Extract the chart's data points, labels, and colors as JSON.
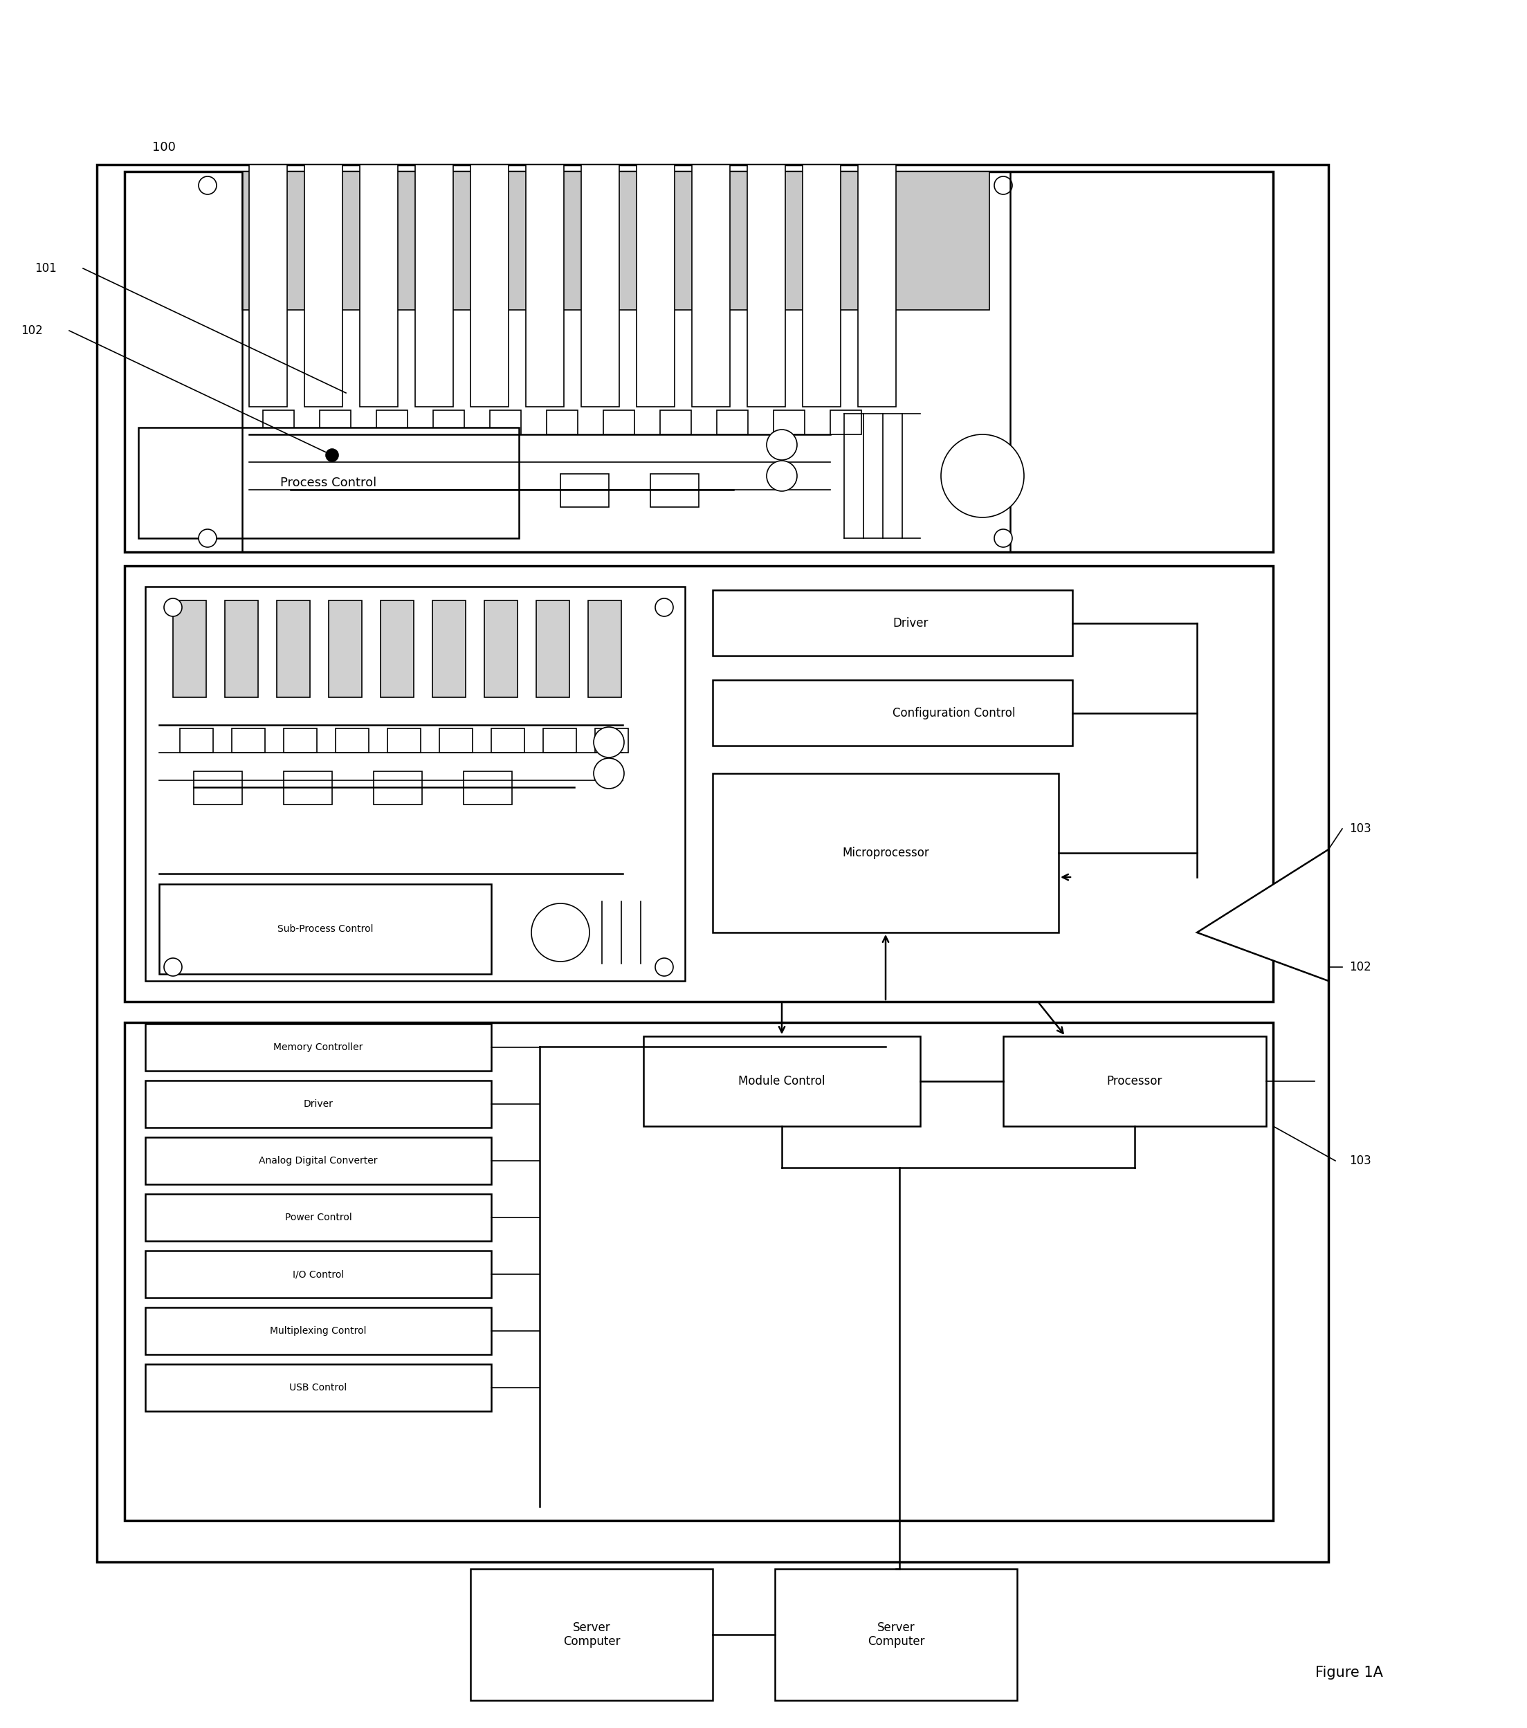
{
  "bg": "#ffffff",
  "lc": "#000000",
  "fw": 22.07,
  "fh": 24.98,
  "labels": {
    "n100": "100",
    "n101": "101",
    "n102": "102",
    "n103": "103",
    "fig": "Figure 1A",
    "proc_ctrl": "Process Control",
    "sub_proc": "Sub-Process Control",
    "driver": "Driver",
    "cfg_ctrl": "Configuration Control",
    "microproc": "Microprocessor",
    "mem_ctrl": "Memory Controller",
    "drv_bot": "Driver",
    "adc": "Analog Digital Converter",
    "pwr_ctrl": "Power Control",
    "io_ctrl": "I/O Control",
    "mux_ctrl": "Multiplexing Control",
    "usb_ctrl": "USB Control",
    "mod_ctrl": "Module Control",
    "processor": "Processor",
    "srv1": "Server\nComputer",
    "srv2": "Server\nComputer"
  }
}
